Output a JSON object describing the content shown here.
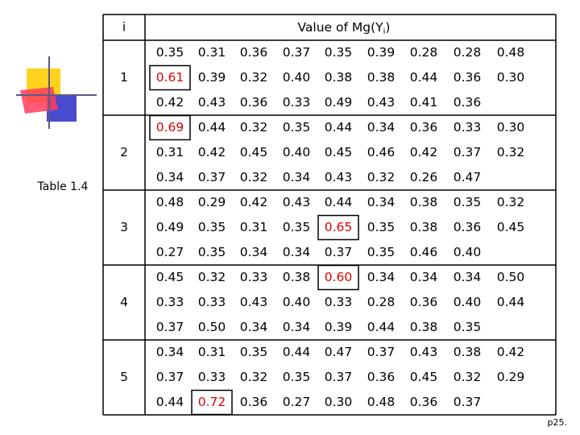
{
  "header": {
    "index": "i",
    "value": "Value of Mg(Y",
    "value_sub": "i",
    "value_close": ")"
  },
  "caption": "Table 1.4",
  "page": "p25.",
  "groups": [
    {
      "label": "1",
      "rows": [
        [
          "0.35",
          "0.31",
          "0.36",
          "0.37",
          "0.35",
          "0.39",
          "0.28",
          "0.28",
          "0.48"
        ],
        [
          "0.61",
          "0.39",
          "0.32",
          "0.40",
          "0.38",
          "0.38",
          "0.44",
          "0.36",
          "0.30"
        ],
        [
          "0.42",
          "0.43",
          "0.36",
          "0.33",
          "0.49",
          "0.43",
          "0.41",
          "0.36"
        ]
      ],
      "highlight": [
        [
          1,
          0
        ]
      ]
    },
    {
      "label": "2",
      "rows": [
        [
          "0.69",
          "0.44",
          "0.32",
          "0.35",
          "0.44",
          "0.34",
          "0.36",
          "0.33",
          "0.30"
        ],
        [
          "0.31",
          "0.42",
          "0.45",
          "0.40",
          "0.45",
          "0.46",
          "0.42",
          "0.37",
          "0.32"
        ],
        [
          "0.34",
          "0.37",
          "0.32",
          "0.34",
          "0.43",
          "0.32",
          "0.26",
          "0.47"
        ]
      ],
      "highlight": [
        [
          0,
          0
        ]
      ]
    },
    {
      "label": "3",
      "rows": [
        [
          "0.48",
          "0.29",
          "0.42",
          "0.43",
          "0.44",
          "0.34",
          "0.38",
          "0.35",
          "0.32"
        ],
        [
          "0.49",
          "0.35",
          "0.31",
          "0.35",
          "0.65",
          "0.35",
          "0.38",
          "0.36",
          "0.45"
        ],
        [
          "0.27",
          "0.35",
          "0.34",
          "0.34",
          "0.37",
          "0.35",
          "0.46",
          "0.40"
        ]
      ],
      "highlight": [
        [
          1,
          4
        ]
      ]
    },
    {
      "label": "4",
      "rows": [
        [
          "0.45",
          "0.32",
          "0.33",
          "0.38",
          "0.60",
          "0.34",
          "0.34",
          "0.34",
          "0.50"
        ],
        [
          "0.33",
          "0.33",
          "0.43",
          "0.40",
          "0.33",
          "0.28",
          "0.36",
          "0.40",
          "0.44"
        ],
        [
          "0.37",
          "0.50",
          "0.34",
          "0.34",
          "0.39",
          "0.44",
          "0.38",
          "0.35"
        ]
      ],
      "highlight": [
        [
          0,
          4
        ]
      ]
    },
    {
      "label": "5",
      "rows": [
        [
          "0.34",
          "0.31",
          "0.35",
          "0.44",
          "0.47",
          "0.37",
          "0.43",
          "0.38",
          "0.42"
        ],
        [
          "0.37",
          "0.33",
          "0.32",
          "0.35",
          "0.37",
          "0.36",
          "0.45",
          "0.32",
          "0.29"
        ],
        [
          "0.44",
          "0.72",
          "0.36",
          "0.27",
          "0.30",
          "0.48",
          "0.36",
          "0.37"
        ]
      ],
      "highlight": [
        [
          2,
          1
        ]
      ]
    }
  ]
}
